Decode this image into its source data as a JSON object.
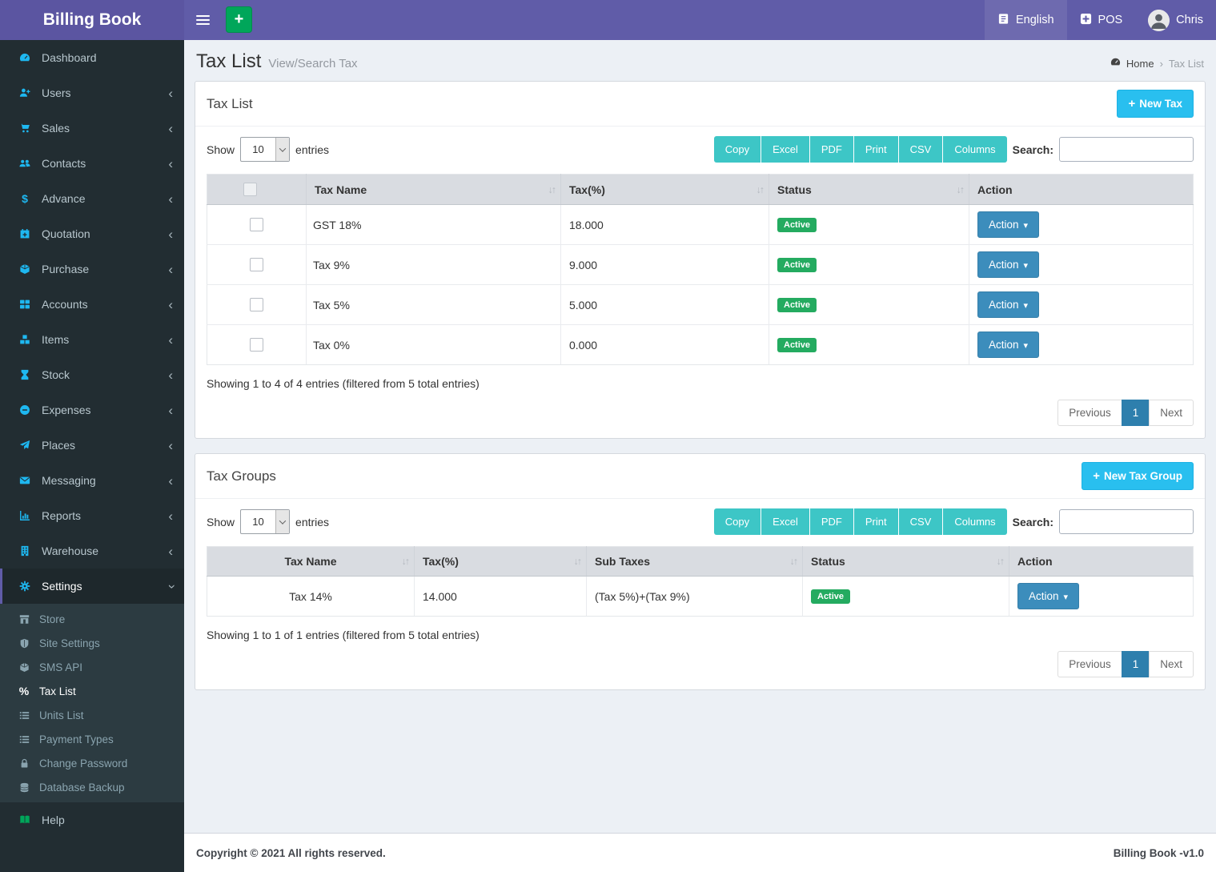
{
  "navbar": {
    "brand": "Billing Book",
    "language": "English",
    "pos": "POS",
    "user": "Chris"
  },
  "page": {
    "title": "Tax List",
    "subtitle": "View/Search Tax",
    "breadcrumb": {
      "home": "Home",
      "current": "Tax List"
    }
  },
  "sidebar": {
    "items": [
      {
        "label": "Dashboard",
        "icon": "dashboard-icon",
        "arrow": false,
        "active": false
      },
      {
        "label": "Users",
        "icon": "user-plus-icon",
        "arrow": "left",
        "active": false
      },
      {
        "label": "Sales",
        "icon": "shopping-cart-icon",
        "arrow": "left",
        "active": false
      },
      {
        "label": "Contacts",
        "icon": "users-icon",
        "arrow": "left",
        "active": false
      },
      {
        "label": "Advance",
        "icon": "dollar-icon",
        "arrow": "left",
        "active": false
      },
      {
        "label": "Quotation",
        "icon": "calendar-plus-icon",
        "arrow": "left",
        "active": false
      },
      {
        "label": "Purchase",
        "icon": "cube-icon",
        "arrow": "left",
        "active": false
      },
      {
        "label": "Accounts",
        "icon": "grid-icon",
        "arrow": "left",
        "active": false
      },
      {
        "label": "Items",
        "icon": "cubes-icon",
        "arrow": "left",
        "active": false
      },
      {
        "label": "Stock",
        "icon": "hourglass-icon",
        "arrow": "left",
        "active": false
      },
      {
        "label": "Expenses",
        "icon": "minus-circle-icon",
        "arrow": "left",
        "active": false
      },
      {
        "label": "Places",
        "icon": "paper-plane-icon",
        "arrow": "left",
        "active": false
      },
      {
        "label": "Messaging",
        "icon": "envelope-icon",
        "arrow": "left",
        "active": false
      },
      {
        "label": "Reports",
        "icon": "bar-chart-icon",
        "arrow": "left",
        "active": false
      },
      {
        "label": "Warehouse",
        "icon": "building-icon",
        "arrow": "left",
        "active": false
      },
      {
        "label": "Settings",
        "icon": "gears-icon",
        "arrow": "down",
        "active": true
      }
    ],
    "settings_children": [
      {
        "label": "Store",
        "icon": "store-icon",
        "active": false
      },
      {
        "label": "Site Settings",
        "icon": "shield-icon",
        "active": false
      },
      {
        "label": "SMS API",
        "icon": "cube-icon",
        "active": false
      },
      {
        "label": "Tax List",
        "icon": "percent-icon",
        "active": true
      },
      {
        "label": "Units List",
        "icon": "list-icon",
        "active": false
      },
      {
        "label": "Payment Types",
        "icon": "list-icon",
        "active": false
      },
      {
        "label": "Change Password",
        "icon": "lock-icon",
        "active": false
      },
      {
        "label": "Database Backup",
        "icon": "database-icon",
        "active": false
      }
    ],
    "help": {
      "label": "Help",
      "icon": "book-icon"
    }
  },
  "tax_list": {
    "panel_title": "Tax List",
    "new_button_label": "New Tax",
    "show_label": "Show",
    "page_size": "10",
    "entries_label": "entries",
    "export_buttons": [
      "Copy",
      "Excel",
      "PDF",
      "Print",
      "CSV",
      "Columns"
    ],
    "search_label": "Search:",
    "search_value": "",
    "columns": [
      "Tax Name",
      "Tax(%)",
      "Status",
      "Action"
    ],
    "rows": [
      {
        "name": "GST 18%",
        "percent": "18.000",
        "status": "Active",
        "action": "Action"
      },
      {
        "name": "Tax 9%",
        "percent": "9.000",
        "status": "Active",
        "action": "Action"
      },
      {
        "name": "Tax 5%",
        "percent": "5.000",
        "status": "Active",
        "action": "Action"
      },
      {
        "name": "Tax 0%",
        "percent": "0.000",
        "status": "Active",
        "action": "Action"
      }
    ],
    "summary": "Showing 1 to 4 of 4 entries (filtered from 5 total entries)",
    "pagination": {
      "previous": "Previous",
      "page": "1",
      "next": "Next"
    }
  },
  "tax_groups": {
    "panel_title": "Tax Groups",
    "new_button_label": "New Tax Group",
    "show_label": "Show",
    "page_size": "10",
    "entries_label": "entries",
    "export_buttons": [
      "Copy",
      "Excel",
      "PDF",
      "Print",
      "CSV",
      "Columns"
    ],
    "search_label": "Search:",
    "search_value": "",
    "columns": [
      "Tax Name",
      "Tax(%)",
      "Sub Taxes",
      "Status",
      "Action"
    ],
    "rows": [
      {
        "name": "Tax 14%",
        "percent": "14.000",
        "sub_taxes": "(Tax 5%)+(Tax 9%)",
        "status": "Active",
        "action": "Action"
      }
    ],
    "summary": "Showing 1 to 1 of 1 entries (filtered from 5 total entries)",
    "pagination": {
      "previous": "Previous",
      "page": "1",
      "next": "Next"
    }
  },
  "footer": {
    "left": "Copyright © 2021 All rights reserved.",
    "right": "Billing Book -v1.0"
  },
  "colors": {
    "navbar_purple": "#605ca8",
    "sidebar_dark": "#222d32",
    "submenu_dark": "#2c3b41",
    "icon_cyan": "#1eb8f1",
    "export_teal": "#3dc6c6",
    "new_cyan": "#29bfef",
    "action_blue": "#3c8dbc",
    "active_green": "#24ab60",
    "page_bg": "#ecf0f5",
    "pagination_active_blue": "#2e7fad",
    "nav_add_green": "#00a65a"
  }
}
